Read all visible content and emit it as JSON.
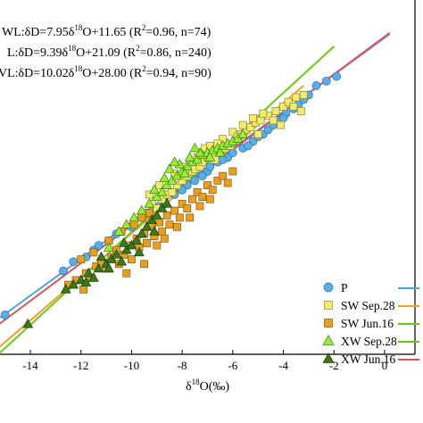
{
  "chart_data": {
    "type": "scatter",
    "xlabel": "δ18O(‰)",
    "xlabel_parts": {
      "delta": "δ",
      "sup": "18",
      "rest": "O(‰)"
    },
    "xlim": [
      -15.2,
      1.2
    ],
    "ylim": [
      -125,
      28
    ],
    "xticks": [
      -14,
      -12,
      -10,
      -8,
      -6,
      -4,
      -2,
      0
    ],
    "xtick_labels": [
      "-14",
      "-12",
      "-10",
      "-8",
      "-6",
      "-4",
      "-2",
      "0"
    ],
    "equations": [
      {
        "prefix": "WL:δD=7.95δ",
        "sup": "18",
        "suffix": "O+11.65 (R",
        "r2sup": "2",
        "tail": "=0.96, n=74)"
      },
      {
        "prefix": "L:δD=9.39δ",
        "sup": "18",
        "suffix": "O+21.09 (R",
        "r2sup": "2",
        "tail": "=0.86, n=240)"
      },
      {
        "prefix": "VL:δD=10.02δ",
        "sup": "18",
        "suffix": "O+28.00 (R",
        "r2sup": "2",
        "tail": "=0.94, n=90)"
      }
    ],
    "fit_lines": [
      {
        "name": "P",
        "slope": 7.95,
        "intercept": 11.65,
        "color": "#4da6e0",
        "x_range": [
          -15.2,
          0.2
        ]
      },
      {
        "name": "SW Sep.28",
        "slope": 9.39,
        "intercept": 21.09,
        "color": "#f0a020",
        "x_range": [
          -15.2,
          -3.2
        ]
      },
      {
        "name": "XW Sep.28",
        "slope": 10.02,
        "intercept": 28.0,
        "color": "#66cc11",
        "x_range": [
          -15.2,
          -2.0
        ]
      },
      {
        "name": "XW Jun.16",
        "slope": 8.15,
        "intercept": 12.2,
        "color": "#e05060",
        "x_range": [
          -15.2,
          0.2
        ]
      }
    ],
    "series": [
      {
        "name": "P",
        "marker": "circle",
        "color": "#5aaee8",
        "stroke": "#2a6ea8",
        "points": [
          [
            -15.0,
            -108
          ],
          [
            -12.7,
            -89
          ],
          [
            -12.3,
            -85
          ],
          [
            -11.8,
            -83
          ],
          [
            -11.5,
            -80
          ],
          [
            -11.3,
            -78
          ],
          [
            -10.9,
            -76
          ],
          [
            -10.6,
            -73
          ],
          [
            -10.0,
            -70
          ],
          [
            -9.4,
            -64
          ],
          [
            -8.7,
            -60
          ],
          [
            -8.3,
            -56
          ],
          [
            -7.8,
            -52
          ],
          [
            -7.5,
            -50
          ],
          [
            -7.0,
            -46
          ],
          [
            -6.9,
            -44
          ],
          [
            -6.6,
            -42
          ],
          [
            -6.2,
            -40
          ],
          [
            -6.0,
            -38
          ],
          [
            -5.6,
            -36
          ],
          [
            -5.2,
            -33
          ],
          [
            -4.8,
            -30
          ],
          [
            -4.6,
            -28
          ],
          [
            -4.2,
            -24
          ],
          [
            -3.9,
            -21
          ],
          [
            -3.6,
            -19
          ],
          [
            -3.4,
            -17
          ],
          [
            -3.0,
            -13
          ],
          [
            -2.7,
            -9
          ],
          [
            -2.3,
            -7
          ],
          [
            -1.9,
            -5
          ],
          [
            -7.2,
            -48
          ],
          [
            -8.0,
            -54
          ],
          [
            -9.0,
            -62
          ],
          [
            -6.4,
            -41
          ],
          [
            -5.0,
            -31
          ],
          [
            -4.4,
            -26
          ],
          [
            -3.2,
            -15
          ],
          [
            -5.4,
            -35
          ],
          [
            -4.0,
            -23
          ]
        ]
      },
      {
        "name": "SW Sep.28",
        "marker": "square",
        "color": "#f4ea70",
        "stroke": "#8a8a30",
        "points": [
          [
            -9.5,
            -64
          ],
          [
            -9.2,
            -60
          ],
          [
            -9.0,
            -62
          ],
          [
            -8.8,
            -58
          ],
          [
            -8.6,
            -56
          ],
          [
            -8.4,
            -55
          ],
          [
            -8.2,
            -52
          ],
          [
            -8.0,
            -50
          ],
          [
            -7.8,
            -48
          ],
          [
            -7.6,
            -46
          ],
          [
            -7.5,
            -45
          ],
          [
            -7.3,
            -44
          ],
          [
            -7.2,
            -42
          ],
          [
            -7.0,
            -40
          ],
          [
            -6.8,
            -39
          ],
          [
            -6.7,
            -41
          ],
          [
            -6.5,
            -37
          ],
          [
            -6.3,
            -36
          ],
          [
            -6.1,
            -35
          ],
          [
            -5.9,
            -33
          ],
          [
            -5.7,
            -30
          ],
          [
            -5.5,
            -28
          ],
          [
            -5.3,
            -27
          ],
          [
            -5.1,
            -25
          ],
          [
            -4.9,
            -24
          ],
          [
            -4.6,
            -22
          ],
          [
            -4.3,
            -20
          ],
          [
            -4.0,
            -18
          ],
          [
            -3.8,
            -16
          ],
          [
            -3.5,
            -14
          ],
          [
            -3.2,
            -13
          ],
          [
            -7.9,
            -44
          ],
          [
            -7.4,
            -40
          ],
          [
            -7.1,
            -36
          ],
          [
            -6.9,
            -35
          ],
          [
            -6.4,
            -32
          ],
          [
            -6.0,
            -29
          ],
          [
            -5.6,
            -26
          ],
          [
            -5.2,
            -23
          ],
          [
            -4.8,
            -21
          ],
          [
            -8.3,
            -47
          ],
          [
            -8.9,
            -52
          ],
          [
            -9.3,
            -56
          ],
          [
            -6.6,
            -34
          ],
          [
            -5.8,
            -31
          ],
          [
            -4.4,
            -24
          ],
          [
            -3.6,
            -18
          ],
          [
            -3.3,
            -20
          ],
          [
            -4.1,
            -26
          ],
          [
            -5.0,
            -30
          ]
        ]
      },
      {
        "name": "SW Jun.16",
        "marker": "square",
        "color": "#e8a022",
        "stroke": "#8a5a10",
        "points": [
          [
            -12.5,
            -95
          ],
          [
            -12.2,
            -93
          ],
          [
            -11.8,
            -90
          ],
          [
            -11.6,
            -92
          ],
          [
            -11.4,
            -87
          ],
          [
            -11.2,
            -85
          ],
          [
            -11.0,
            -88
          ],
          [
            -10.8,
            -83
          ],
          [
            -10.6,
            -80
          ],
          [
            -10.5,
            -86
          ],
          [
            -10.3,
            -82
          ],
          [
            -10.1,
            -78
          ],
          [
            -10.0,
            -84
          ],
          [
            -9.8,
            -75
          ],
          [
            -9.7,
            -79
          ],
          [
            -9.5,
            -73
          ],
          [
            -9.4,
            -77
          ],
          [
            -9.2,
            -70
          ],
          [
            -9.1,
            -74
          ],
          [
            -8.9,
            -68
          ],
          [
            -8.8,
            -72
          ],
          [
            -8.6,
            -65
          ],
          [
            -8.5,
            -69
          ],
          [
            -8.3,
            -63
          ],
          [
            -8.1,
            -66
          ],
          [
            -8.0,
            -60
          ],
          [
            -7.8,
            -62
          ],
          [
            -7.6,
            -58
          ],
          [
            -7.4,
            -55
          ],
          [
            -7.2,
            -57
          ],
          [
            -7.0,
            -52
          ],
          [
            -6.8,
            -54
          ],
          [
            -6.6,
            -50
          ],
          [
            -6.4,
            -48
          ],
          [
            -6.2,
            -51
          ],
          [
            -6.0,
            -46
          ],
          [
            -10.9,
            -76
          ],
          [
            -10.4,
            -72
          ],
          [
            -9.9,
            -69
          ],
          [
            -9.6,
            -66
          ],
          [
            -9.3,
            -64
          ],
          [
            -11.5,
            -81
          ],
          [
            -12.0,
            -84
          ],
          [
            -7.7,
            -66
          ],
          [
            -8.7,
            -75
          ],
          [
            -9.0,
            -78
          ],
          [
            -7.3,
            -61
          ],
          [
            -6.9,
            -58
          ],
          [
            -10.2,
            -90
          ],
          [
            -9.5,
            -86
          ],
          [
            -11.9,
            -97
          ],
          [
            -8.2,
            -70
          ]
        ]
      },
      {
        "name": "XW Sep.28",
        "marker": "triangle-up",
        "color": "#99ee33",
        "stroke": "#3a7a10",
        "points": [
          [
            -10.9,
            -79
          ],
          [
            -10.5,
            -72
          ],
          [
            -10.2,
            -69
          ],
          [
            -9.9,
            -66
          ],
          [
            -9.6,
            -63
          ],
          [
            -9.3,
            -60
          ],
          [
            -9.0,
            -57
          ],
          [
            -8.8,
            -55
          ],
          [
            -8.6,
            -52
          ],
          [
            -8.4,
            -50
          ],
          [
            -8.2,
            -48
          ],
          [
            -8.0,
            -46
          ],
          [
            -7.8,
            -44
          ],
          [
            -7.6,
            -42
          ],
          [
            -7.4,
            -41
          ],
          [
            -7.2,
            -39
          ],
          [
            -7.0,
            -38
          ],
          [
            -6.8,
            -37
          ],
          [
            -6.6,
            -36
          ],
          [
            -6.4,
            -35
          ],
          [
            -6.2,
            -34
          ],
          [
            -6.0,
            -33
          ],
          [
            -5.8,
            -32
          ],
          [
            -5.6,
            -30
          ],
          [
            -8.5,
            -45
          ],
          [
            -8.1,
            -43
          ],
          [
            -7.7,
            -40
          ],
          [
            -7.3,
            -38
          ],
          [
            -7.9,
            -47
          ],
          [
            -8.7,
            -49
          ],
          [
            -9.1,
            -54
          ],
          [
            -6.9,
            -40
          ],
          [
            -6.5,
            -38
          ],
          [
            -7.5,
            -36
          ],
          [
            -8.3,
            -42
          ]
        ]
      },
      {
        "name": "XW Jun.16",
        "marker": "triangle-up",
        "color": "#3a7a18",
        "stroke": "#1a3a08",
        "points": [
          [
            -12.6,
            -97
          ],
          [
            -12.3,
            -95
          ],
          [
            -12.0,
            -93
          ],
          [
            -11.7,
            -90
          ],
          [
            -11.5,
            -92
          ],
          [
            -11.3,
            -88
          ],
          [
            -11.0,
            -86
          ],
          [
            -10.8,
            -84
          ],
          [
            -10.6,
            -82
          ],
          [
            -10.4,
            -85
          ],
          [
            -10.2,
            -80
          ],
          [
            -10.0,
            -78
          ],
          [
            -9.8,
            -76
          ],
          [
            -9.6,
            -73
          ],
          [
            -9.4,
            -70
          ],
          [
            -9.2,
            -67
          ],
          [
            -9.0,
            -65
          ],
          [
            -8.8,
            -62
          ],
          [
            -8.6,
            -60
          ],
          [
            -10.9,
            -88
          ],
          [
            -11.8,
            -94
          ],
          [
            -9.7,
            -81
          ],
          [
            -9.1,
            -72
          ],
          [
            -10.3,
            -77
          ],
          [
            -14.1,
            -112
          ],
          [
            -11.2,
            -83
          ]
        ]
      }
    ],
    "legend": {
      "position": "bottom-right",
      "entries": [
        {
          "label": "P",
          "marker": "circle",
          "color": "#5aaee8",
          "stroke": "#2a6ea8",
          "line": "#4da6e0"
        },
        {
          "label": "SW Sep.28",
          "marker": "square",
          "color": "#f4ea70",
          "stroke": "#8a8a30",
          "line": "#f0a020"
        },
        {
          "label": "SW Jun.16",
          "marker": "square",
          "color": "#e8a022",
          "stroke": "#8a5a10",
          "line": "#66cc11"
        },
        {
          "label": "XW Sep.28",
          "marker": "triangle-up",
          "color": "#99ee33",
          "stroke": "#3a7a10",
          "line": "#66cc11"
        },
        {
          "label": "XW Jun.16",
          "marker": "triangle-up",
          "color": "#3a7a18",
          "stroke": "#1a3a08",
          "line": "#e05060"
        }
      ]
    },
    "grid": false
  }
}
